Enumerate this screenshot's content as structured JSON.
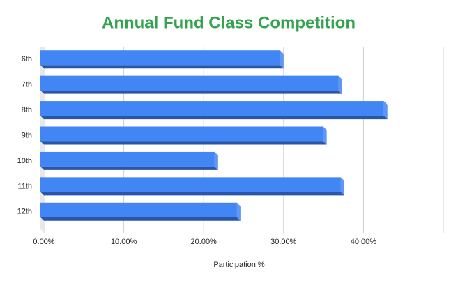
{
  "chart_data": {
    "type": "bar",
    "orientation": "horizontal",
    "title": "Annual Fund Class Competition",
    "categories": [
      "6th",
      "7th",
      "8th",
      "9th",
      "10th",
      "11th",
      "12th"
    ],
    "values": [
      30,
      37.3,
      43,
      35.4,
      21.8,
      37.6,
      24.6
    ],
    "color": "#4285f4",
    "x_label": "Participation %",
    "xlim": [
      0,
      50
    ],
    "xticks": [
      {
        "value": 0,
        "label": "0.00%"
      },
      {
        "value": 10,
        "label": "10.00%"
      },
      {
        "value": 20,
        "label": "20.00%"
      },
      {
        "value": 30,
        "label": "30.00%"
      },
      {
        "value": 40,
        "label": "40.00%"
      }
    ],
    "grid": true
  }
}
